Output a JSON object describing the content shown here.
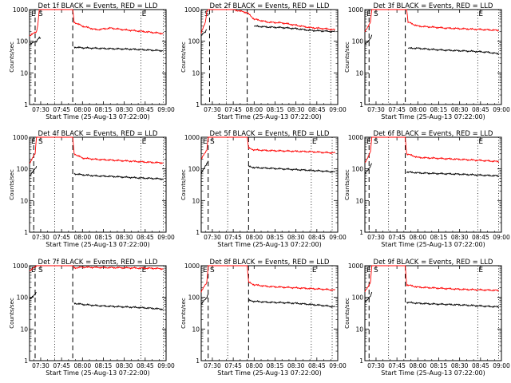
{
  "figure": {
    "common": {
      "xlabel": "Start Time (25-Aug-13 07:22:00)",
      "ylabel": "Counts/sec",
      "x_ticks": [
        "07:30",
        "07:45",
        "08:00",
        "08:15",
        "08:30",
        "08:45",
        "09:00"
      ],
      "y_ticks": [
        "1",
        "10",
        "100",
        "1000"
      ],
      "xlim": [
        "07:22",
        "09:00"
      ],
      "ylim": [
        1,
        1000
      ],
      "y_scale": "log",
      "series_colors": {
        "events": "#000000",
        "lld": "#ff0000"
      }
    },
    "panels": [
      {
        "title": "Det 1f BLACK = Events, RED = LLD",
        "markers": [
          "E",
          "S",
          "E"
        ]
      },
      {
        "title": "Det 2f BLACK = Events, RED = LLD",
        "markers": [
          "S"
        ]
      },
      {
        "title": "Det 3f BLACK = Events, RED = LLD",
        "markers": [
          "E",
          "S",
          "E"
        ]
      },
      {
        "title": "Det 4f BLACK = Events, RED = LLD",
        "markers": [
          "E",
          "S",
          "E"
        ]
      },
      {
        "title": "Det 5f BLACK = Events, RED = LLD",
        "markers": [
          "E",
          "S",
          "E"
        ]
      },
      {
        "title": "Det 6f BLACK = Events, RED = LLD",
        "markers": [
          "E",
          "S",
          "E"
        ]
      },
      {
        "title": "Det 7f BLACK = Events, RED = LLD",
        "markers": [
          "E",
          "S",
          "E"
        ]
      },
      {
        "title": "Det 8f BLACK = Events, RED = LLD",
        "markers": [
          "E",
          "S",
          "E"
        ]
      },
      {
        "title": "Det 9f BLACK = Events, RED = LLD",
        "markers": [
          "E",
          "S",
          "E"
        ]
      }
    ]
  },
  "chart_data": [
    {
      "type": "line",
      "title": "Det 1f BLACK = Events, RED = LLD",
      "xlabel": "Start Time (25-Aug-13 07:22:00)",
      "ylabel": "Counts/sec",
      "x": [
        "07:22",
        "07:27",
        "07:28",
        "07:29",
        "07:30",
        "07:34",
        "07:42",
        "07:53",
        "07:54",
        "08:00",
        "08:10",
        "08:20",
        "08:30",
        "08:40",
        "08:50",
        "08:58"
      ],
      "ylim": [
        1,
        1000
      ],
      "y_scale": "log",
      "vlines_dashed": [
        "07:26",
        "07:53"
      ],
      "vlines_dotted": [
        "07:40",
        "08:42",
        "08:58"
      ],
      "series": [
        {
          "name": "LLD",
          "color": "#ff0000",
          "values": [
            150,
            200,
            350,
            1000,
            1000,
            1000,
            1000,
            1000,
            400,
            300,
            230,
            260,
            230,
            210,
            190,
            175
          ]
        },
        {
          "name": "Events",
          "color": "#000000",
          "values": [
            80,
            100,
            120,
            130,
            120,
            null,
            null,
            null,
            65,
            62,
            60,
            58,
            57,
            55,
            52,
            50
          ]
        }
      ]
    },
    {
      "type": "line",
      "title": "Det 2f BLACK = Events, RED = LLD",
      "xlabel": "Start Time (25-Aug-13 07:22:00)",
      "ylabel": "Counts/sec",
      "x": [
        "07:22",
        "07:25",
        "07:26",
        "07:27",
        "07:30",
        "07:35",
        "07:45",
        "07:55",
        "08:00",
        "08:10",
        "08:20",
        "08:30",
        "08:40",
        "08:50",
        "08:58"
      ],
      "ylim": [
        1,
        1000
      ],
      "y_scale": "log",
      "vlines_dashed": [
        "07:28",
        "07:55"
      ],
      "vlines_dotted": [
        "07:40",
        "08:40",
        "08:55"
      ],
      "series": [
        {
          "name": "LLD",
          "color": "#ff0000",
          "values": [
            180,
            400,
            900,
            1000,
            1000,
            1000,
            1000,
            800,
            500,
            400,
            380,
            320,
            270,
            250,
            230
          ]
        },
        {
          "name": "Events",
          "color": "#000000",
          "values": [
            150,
            200,
            250,
            null,
            null,
            null,
            null,
            null,
            300,
            280,
            270,
            250,
            220,
            210,
            200
          ]
        }
      ]
    },
    {
      "type": "line",
      "title": "Det 3f BLACK = Events, RED = LLD",
      "xlabel": "Start Time (25-Aug-13 07:22:00)",
      "ylabel": "Counts/sec",
      "x": [
        "07:22",
        "07:26",
        "07:27",
        "07:28",
        "07:30",
        "07:40",
        "07:52",
        "07:53",
        "08:00",
        "08:10",
        "08:20",
        "08:30",
        "08:40",
        "08:50",
        "08:58"
      ],
      "ylim": [
        1,
        1000
      ],
      "y_scale": "log",
      "vlines_dashed": [
        "07:25",
        "07:51"
      ],
      "vlines_dotted": [
        "07:39",
        "08:43",
        "08:58"
      ],
      "series": [
        {
          "name": "LLD",
          "color": "#ff0000",
          "values": [
            200,
            400,
            1000,
            1000,
            1000,
            1000,
            1000,
            400,
            300,
            280,
            260,
            250,
            240,
            230,
            220
          ]
        },
        {
          "name": "Events",
          "color": "#000000",
          "values": [
            80,
            120,
            150,
            null,
            null,
            null,
            null,
            60,
            60,
            55,
            52,
            50,
            48,
            45,
            40
          ]
        }
      ]
    },
    {
      "type": "line",
      "title": "Det 4f BLACK = Events, RED = LLD",
      "xlabel": "Start Time (25-Aug-13 07:22:00)",
      "ylabel": "Counts/sec",
      "x": [
        "07:22",
        "07:26",
        "07:27",
        "07:28",
        "07:30",
        "07:40",
        "07:53",
        "07:54",
        "08:00",
        "08:10",
        "08:20",
        "08:30",
        "08:40",
        "08:50",
        "08:58"
      ],
      "ylim": [
        1,
        1000
      ],
      "y_scale": "log",
      "vlines_dashed": [
        "07:25",
        "07:53"
      ],
      "vlines_dotted": [
        "07:40",
        "08:42",
        "08:58"
      ],
      "series": [
        {
          "name": "LLD",
          "color": "#ff0000",
          "values": [
            150,
            300,
            1000,
            1000,
            1000,
            1000,
            1000,
            300,
            220,
            200,
            190,
            180,
            170,
            160,
            155
          ]
        },
        {
          "name": "Events",
          "color": "#000000",
          "values": [
            60,
            100,
            120,
            null,
            null,
            null,
            null,
            70,
            65,
            60,
            58,
            55,
            52,
            50,
            48
          ]
        }
      ]
    },
    {
      "type": "line",
      "title": "Det 5f BLACK = Events, RED = LLD",
      "xlabel": "Start Time (25-Aug-13 07:22:00)",
      "ylabel": "Counts/sec",
      "x": [
        "07:22",
        "07:26",
        "07:27",
        "07:28",
        "07:30",
        "07:40",
        "07:55",
        "07:56",
        "08:00",
        "08:10",
        "08:20",
        "08:30",
        "08:40",
        "08:50",
        "08:58"
      ],
      "ylim": [
        1,
        1000
      ],
      "y_scale": "log",
      "vlines_dashed": [
        "07:27",
        "07:56"
      ],
      "vlines_dotted": [
        "07:41",
        "08:41",
        "08:56"
      ],
      "series": [
        {
          "name": "LLD",
          "color": "#ff0000",
          "values": [
            200,
            400,
            1000,
            1000,
            1000,
            1000,
            1000,
            450,
            400,
            380,
            370,
            360,
            350,
            330,
            320
          ]
        },
        {
          "name": "Events",
          "color": "#000000",
          "values": [
            70,
            150,
            180,
            null,
            null,
            null,
            null,
            120,
            110,
            105,
            100,
            95,
            90,
            85,
            80
          ]
        }
      ]
    },
    {
      "type": "line",
      "title": "Det 6f BLACK = Events, RED = LLD",
      "xlabel": "Start Time (25-Aug-13 07:22:00)",
      "ylabel": "Counts/sec",
      "x": [
        "07:22",
        "07:26",
        "07:27",
        "07:28",
        "07:30",
        "07:40",
        "07:51",
        "07:52",
        "08:00",
        "08:10",
        "08:20",
        "08:30",
        "08:40",
        "08:50",
        "08:58"
      ],
      "ylim": [
        1,
        1000
      ],
      "y_scale": "log",
      "vlines_dashed": [
        "07:25",
        "07:51"
      ],
      "vlines_dotted": [
        "07:39",
        "08:43",
        "08:58"
      ],
      "series": [
        {
          "name": "LLD",
          "color": "#ff0000",
          "values": [
            150,
            350,
            1000,
            1000,
            1000,
            1000,
            1000,
            300,
            230,
            220,
            210,
            200,
            190,
            180,
            170
          ]
        },
        {
          "name": "Events",
          "color": "#000000",
          "values": [
            70,
            120,
            150,
            null,
            null,
            null,
            null,
            80,
            75,
            72,
            70,
            68,
            65,
            62,
            60
          ]
        }
      ]
    },
    {
      "type": "line",
      "title": "Det 7f BLACK = Events, RED = LLD",
      "xlabel": "Start Time (25-Aug-13 07:22:00)",
      "ylabel": "Counts/sec",
      "x": [
        "07:22",
        "07:26",
        "07:27",
        "07:28",
        "07:30",
        "07:40",
        "07:53",
        "07:54",
        "08:00",
        "08:10",
        "08:20",
        "08:30",
        "08:40",
        "08:50",
        "08:58"
      ],
      "ylim": [
        1,
        1000
      ],
      "y_scale": "log",
      "vlines_dashed": [
        "07:26",
        "07:53"
      ],
      "vlines_dotted": [
        "07:40",
        "08:42",
        "08:58"
      ],
      "series": [
        {
          "name": "LLD",
          "color": "#ff0000",
          "values": [
            700,
            900,
            1000,
            1000,
            1000,
            1000,
            1000,
            850,
            900,
            880,
            870,
            860,
            840,
            830,
            800
          ]
        },
        {
          "name": "Events",
          "color": "#000000",
          "values": [
            90,
            120,
            150,
            null,
            null,
            null,
            null,
            65,
            60,
            55,
            52,
            50,
            48,
            45,
            42
          ]
        }
      ]
    },
    {
      "type": "line",
      "title": "Det 8f BLACK = Events, RED = LLD",
      "xlabel": "Start Time (25-Aug-13 07:22:00)",
      "ylabel": "Counts/sec",
      "x": [
        "07:22",
        "07:26",
        "07:27",
        "07:28",
        "07:30",
        "07:40",
        "07:55",
        "07:56",
        "08:00",
        "08:10",
        "08:20",
        "08:30",
        "08:40",
        "08:50",
        "08:58"
      ],
      "ylim": [
        1,
        1000
      ],
      "y_scale": "log",
      "vlines_dashed": [
        "07:27",
        "07:56"
      ],
      "vlines_dotted": [
        "07:41",
        "08:41",
        "08:56"
      ],
      "series": [
        {
          "name": "LLD",
          "color": "#ff0000",
          "values": [
            150,
            300,
            1000,
            1000,
            1000,
            1000,
            1000,
            300,
            250,
            220,
            210,
            200,
            190,
            180,
            170
          ]
        },
        {
          "name": "Events",
          "color": "#000000",
          "values": [
            60,
            100,
            130,
            null,
            null,
            null,
            null,
            80,
            75,
            70,
            68,
            65,
            60,
            55,
            50
          ]
        }
      ]
    },
    {
      "type": "line",
      "title": "Det 9f BLACK = Events, RED = LLD",
      "xlabel": "Start Time (25-Aug-13 07:22:00)",
      "ylabel": "Counts/sec",
      "x": [
        "07:22",
        "07:26",
        "07:27",
        "07:28",
        "07:30",
        "07:40",
        "07:51",
        "07:52",
        "08:00",
        "08:10",
        "08:20",
        "08:30",
        "08:40",
        "08:50",
        "08:58"
      ],
      "ylim": [
        1,
        1000
      ],
      "y_scale": "log",
      "vlines_dashed": [
        "07:25",
        "07:51"
      ],
      "vlines_dotted": [
        "07:39",
        "08:43",
        "08:58"
      ],
      "series": [
        {
          "name": "LLD",
          "color": "#ff0000",
          "values": [
            150,
            300,
            1000,
            1000,
            1000,
            1000,
            1000,
            250,
            210,
            200,
            190,
            180,
            175,
            170,
            165
          ]
        },
        {
          "name": "Events",
          "color": "#000000",
          "values": [
            70,
            110,
            140,
            null,
            null,
            null,
            null,
            70,
            65,
            62,
            60,
            58,
            55,
            52,
            50
          ]
        }
      ]
    }
  ]
}
